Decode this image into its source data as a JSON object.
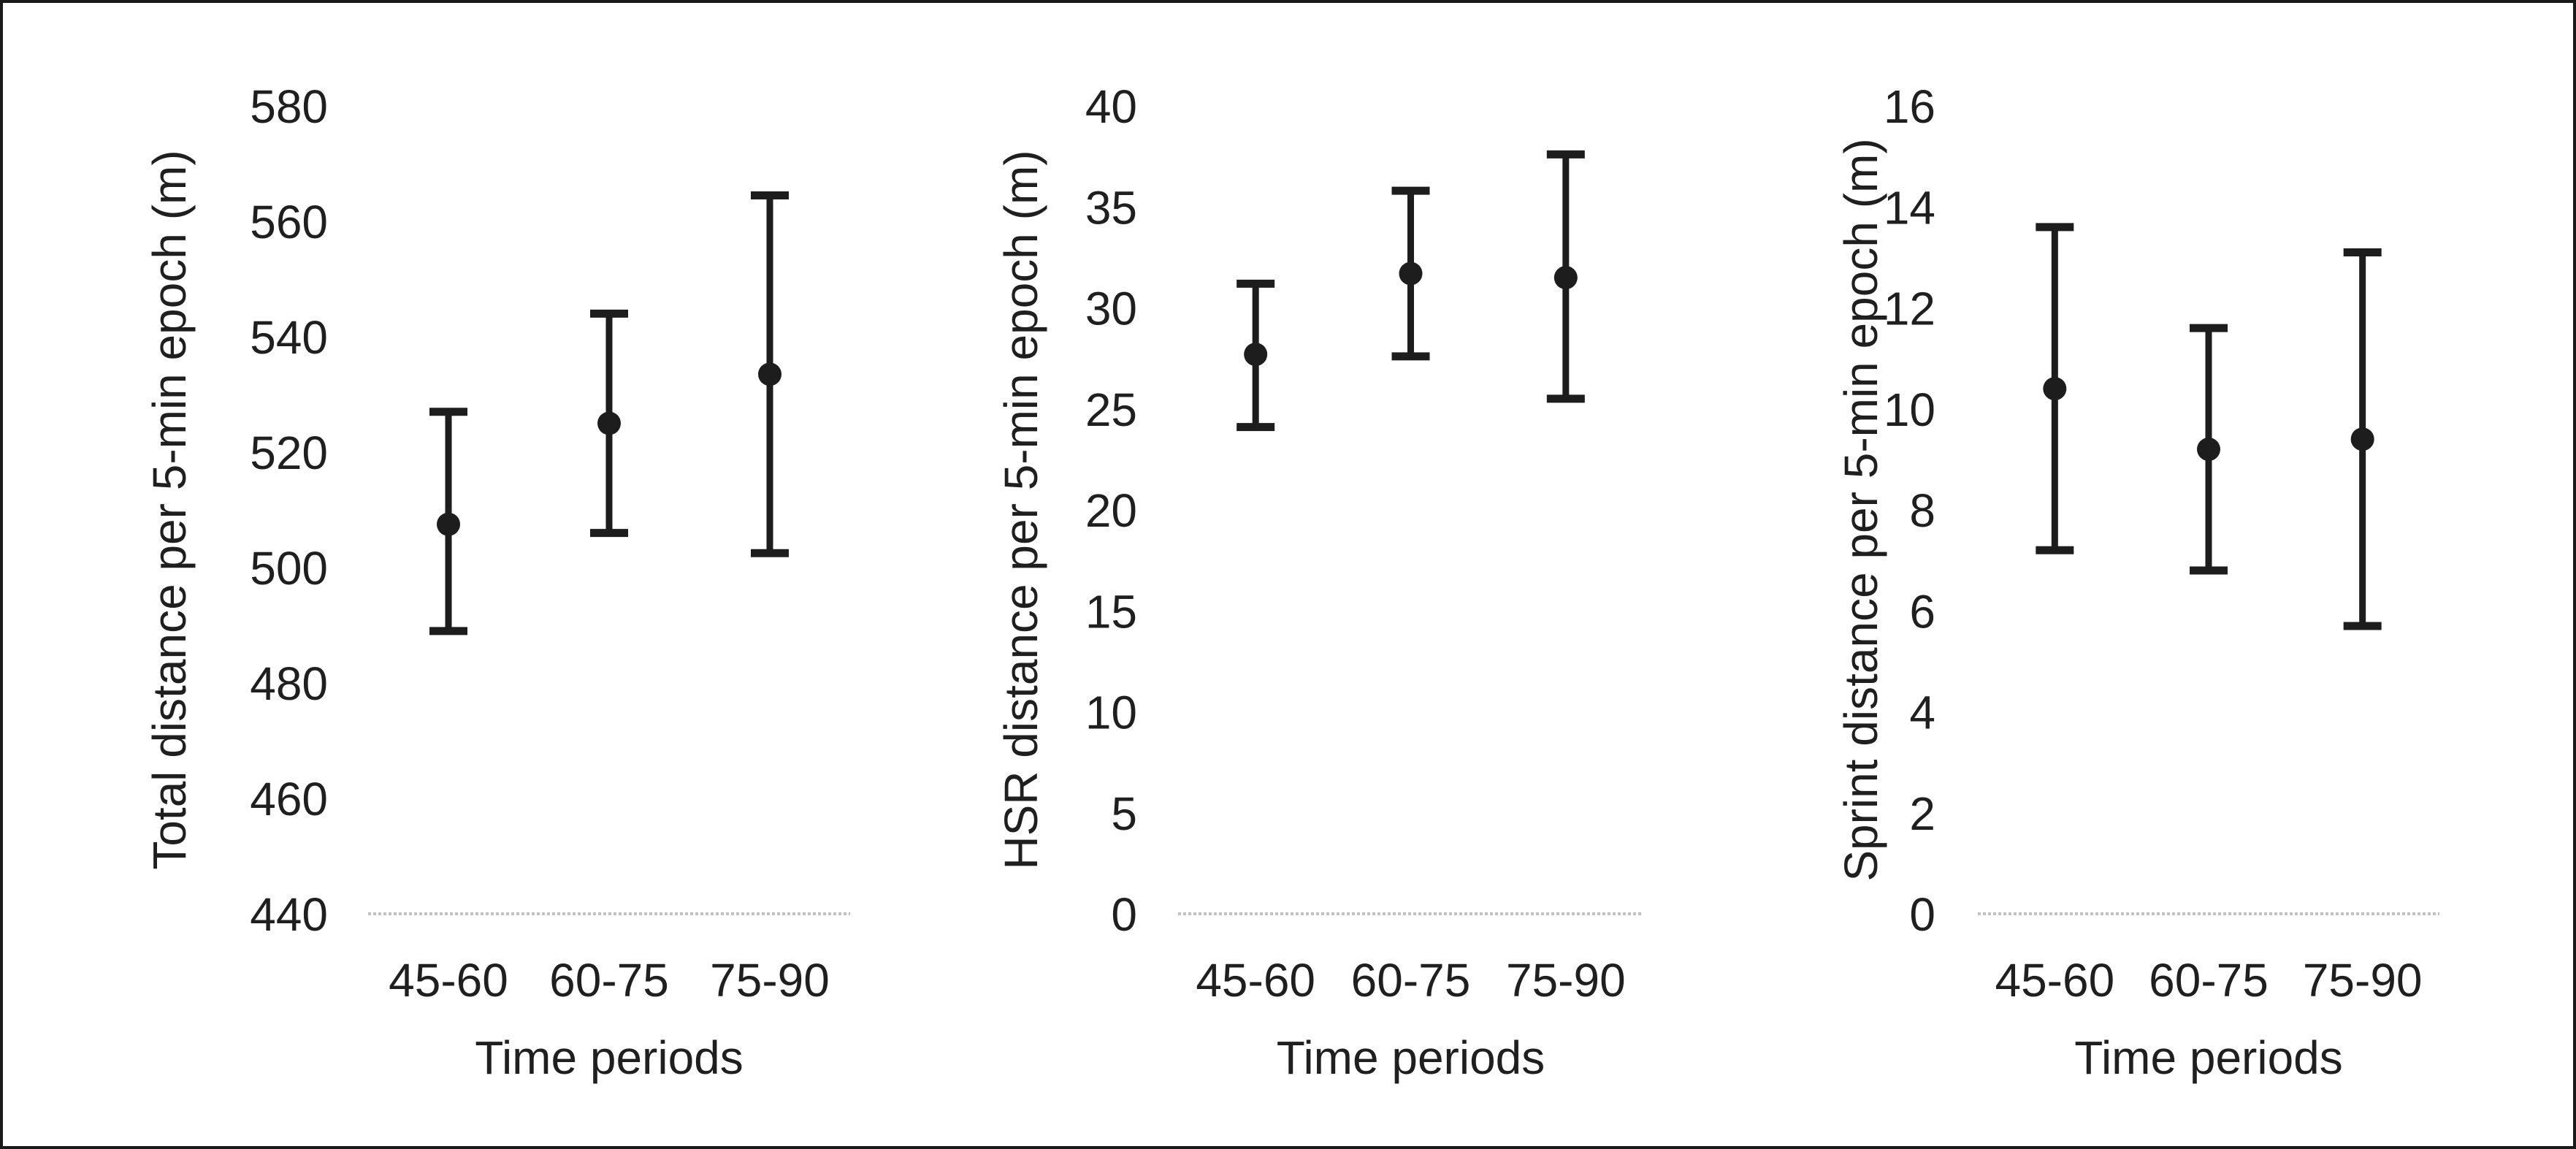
{
  "figure": {
    "background": "#ffffff",
    "border_color": "#1a1a1a",
    "text_color": "#1f1f1f",
    "errorbar_color": "#1d1d1d",
    "baseline_color": "#c2c2c2"
  },
  "chart_data": [
    {
      "type": "scatter",
      "subtype": "mean-with-error-bars",
      "ylabel": "Total distance per 5-min epoch (m)",
      "xlabel": "Time periods",
      "categories": [
        "45-60",
        "60-75",
        "75-90"
      ],
      "means": [
        507.5,
        525,
        533.5
      ],
      "error_low": [
        489,
        506,
        502.5
      ],
      "error_high": [
        527,
        544,
        564.5
      ],
      "ylim": [
        440,
        580
      ],
      "yticks": [
        440,
        460,
        480,
        500,
        520,
        540,
        560,
        580
      ],
      "grid": false,
      "legend": "none"
    },
    {
      "type": "scatter",
      "subtype": "mean-with-error-bars",
      "ylabel": "HSR distance per 5-min epoch (m)",
      "xlabel": "Time periods",
      "categories": [
        "45-60",
        "60-75",
        "75-90"
      ],
      "means": [
        27.7,
        31.7,
        31.5
      ],
      "error_low": [
        24.1,
        27.6,
        25.5
      ],
      "error_high": [
        31.2,
        35.8,
        37.6
      ],
      "ylim": [
        0,
        40
      ],
      "yticks": [
        0,
        5,
        10,
        15,
        20,
        25,
        30,
        35,
        40
      ],
      "grid": false,
      "legend": "none"
    },
    {
      "type": "scatter",
      "subtype": "mean-with-error-bars",
      "ylabel": "Sprint distance per 5-min epoch (m)",
      "xlabel": "Time periods",
      "categories": [
        "45-60",
        "60-75",
        "75-90"
      ],
      "means": [
        10.4,
        9.2,
        9.4
      ],
      "error_low": [
        7.2,
        6.8,
        5.7
      ],
      "error_high": [
        13.6,
        11.6,
        13.1
      ],
      "ylim": [
        0,
        16
      ],
      "yticks": [
        0,
        2,
        4,
        6,
        8,
        10,
        12,
        14,
        16
      ],
      "grid": false,
      "legend": "none"
    }
  ]
}
